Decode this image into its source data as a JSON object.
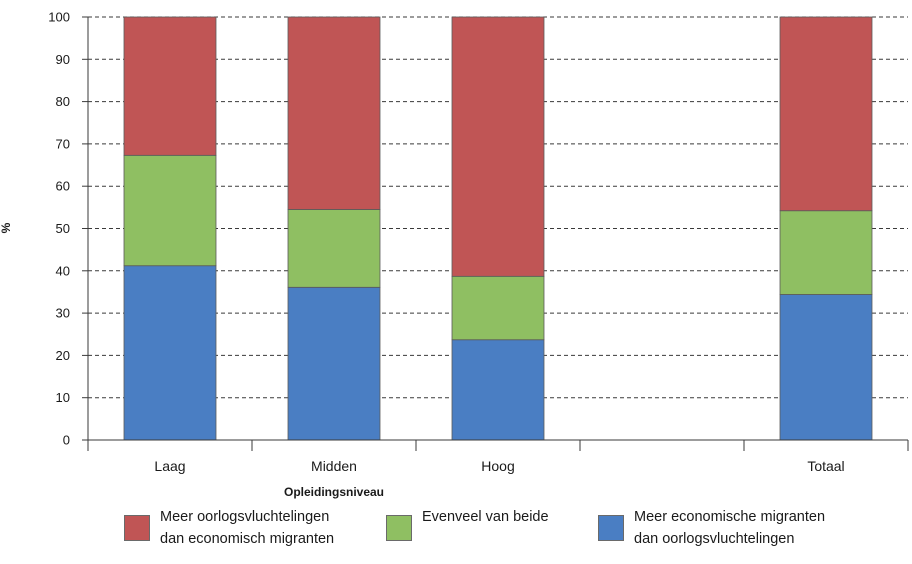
{
  "chart_data": {
    "type": "bar",
    "stacked": true,
    "categories": [
      "Laag",
      "Midden",
      "Hoog",
      "",
      "Totaal"
    ],
    "series": [
      {
        "name": "Meer economische migranten dan oorlogsvluchtelingen",
        "label_lines": [
          "Meer economische migranten",
          "dan oorlogsvluchtelingen"
        ],
        "color": "#4a7ec3",
        "values": [
          41.2,
          36.1,
          23.7,
          null,
          34.4
        ]
      },
      {
        "name": "Evenveel van beide",
        "label_lines": [
          "Evenveel van beide"
        ],
        "color": "#8fbf62",
        "values": [
          26.1,
          18.4,
          15.0,
          null,
          19.8
        ]
      },
      {
        "name": "Meer oorlogsvluchtelingen dan economisch migranten",
        "label_lines": [
          "Meer oorlogsvluchtelingen",
          "dan economisch migranten"
        ],
        "color": "#c05555",
        "values": [
          32.7,
          45.5,
          61.3,
          null,
          45.8
        ]
      }
    ],
    "title": "",
    "xlabel": "Opleidingsniveau",
    "ylabel": "%",
    "ylim": [
      0,
      100
    ],
    "yticks": [
      0,
      10,
      20,
      30,
      40,
      50,
      60,
      70,
      80,
      90,
      100
    ],
    "grid": "horizontal-dashed",
    "legend_position": "bottom",
    "legend_order": [
      2,
      1,
      0
    ]
  }
}
